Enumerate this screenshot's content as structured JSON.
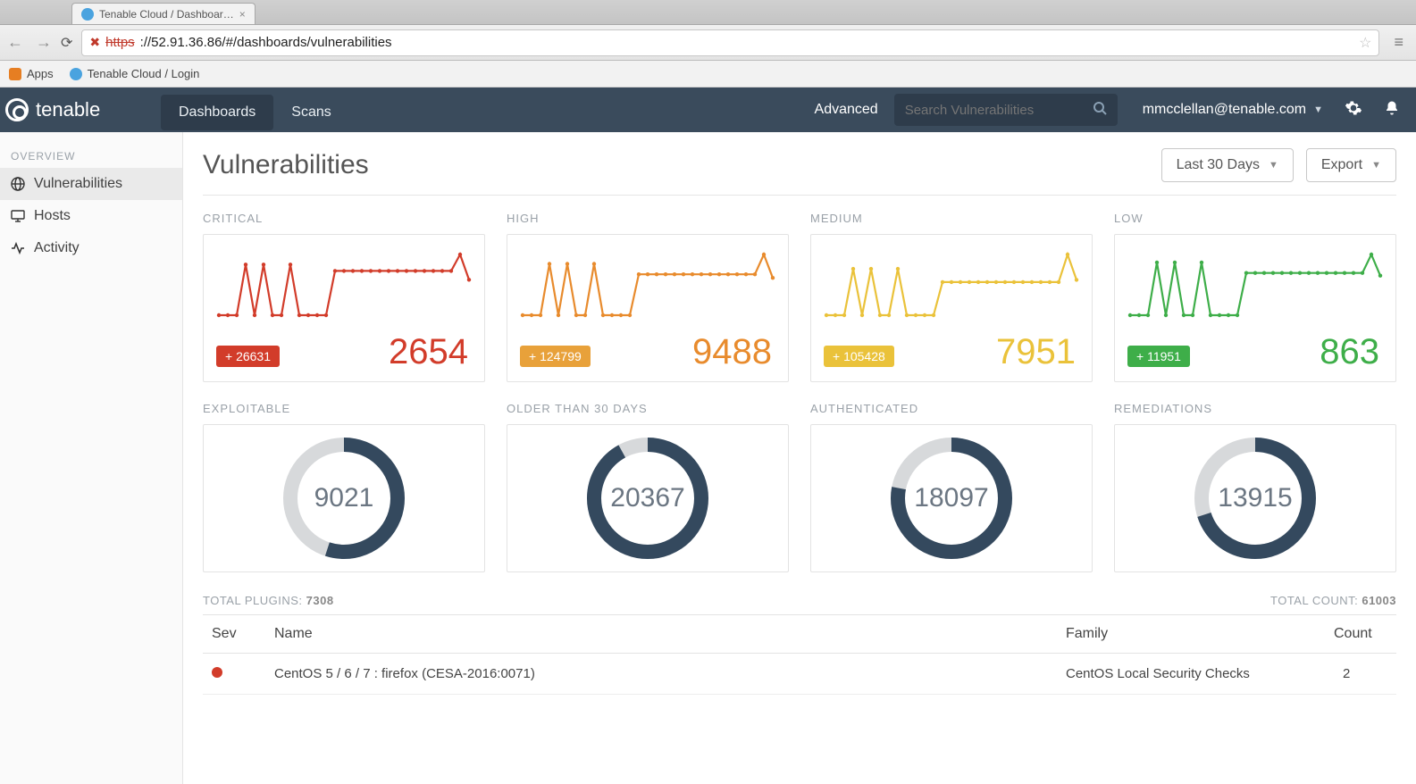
{
  "browser": {
    "tab_title": "Tenable Cloud / Dashboar…",
    "url_https": "https",
    "url_rest": "://52.91.36.86/#/dashboards/vulnerabilities",
    "bookmarks": [
      "Apps",
      "Tenable Cloud / Login"
    ]
  },
  "topnav": {
    "brand": "tenable",
    "tabs": [
      "Dashboards",
      "Scans"
    ],
    "active_tab_index": 0,
    "advanced": "Advanced",
    "search_placeholder": "Search Vulnerabilities",
    "user": "mmcclellan@tenable.com"
  },
  "sidebar": {
    "section": "OVERVIEW",
    "items": [
      {
        "label": "Vulnerabilities",
        "icon": "globe",
        "active": true
      },
      {
        "label": "Hosts",
        "icon": "monitor",
        "active": false
      },
      {
        "label": "Activity",
        "icon": "activity",
        "active": false
      }
    ]
  },
  "page": {
    "title": "Vulnerabilities",
    "date_range": "Last 30 Days",
    "export": "Export"
  },
  "severity_cards": [
    {
      "label": "CRITICAL",
      "color": "#d23c2a",
      "badge_bg": "#d23c2a",
      "badge": "+ 26631",
      "value": "2654",
      "spark": [
        30,
        30,
        30,
        70,
        30,
        70,
        30,
        30,
        70,
        30,
        30,
        30,
        30,
        65,
        65,
        65,
        65,
        65,
        65,
        65,
        65,
        65,
        65,
        65,
        65,
        65,
        65,
        78,
        58
      ]
    },
    {
      "label": "HIGH",
      "color": "#e88b2d",
      "badge_bg": "#e8a13a",
      "badge": "+ 124799",
      "value": "9488",
      "spark": [
        28,
        28,
        28,
        72,
        28,
        72,
        28,
        28,
        72,
        28,
        28,
        28,
        28,
        63,
        63,
        63,
        63,
        63,
        63,
        63,
        63,
        63,
        63,
        63,
        63,
        63,
        63,
        80,
        60
      ]
    },
    {
      "label": "MEDIUM",
      "color": "#eac23a",
      "badge_bg": "#eac23a",
      "badge": "+ 105428",
      "value": "7951",
      "spark": [
        30,
        30,
        30,
        72,
        30,
        72,
        30,
        30,
        72,
        30,
        30,
        30,
        30,
        60,
        60,
        60,
        60,
        60,
        60,
        60,
        60,
        60,
        60,
        60,
        60,
        60,
        60,
        85,
        62
      ]
    },
    {
      "label": "LOW",
      "color": "#3eae49",
      "badge_bg": "#3eae49",
      "badge": "+ 11951",
      "value": "863",
      "spark": [
        30,
        30,
        30,
        70,
        30,
        70,
        30,
        30,
        70,
        30,
        30,
        30,
        30,
        62,
        62,
        62,
        62,
        62,
        62,
        62,
        62,
        62,
        62,
        62,
        62,
        62,
        62,
        76,
        60
      ]
    }
  ],
  "donut_cards": [
    {
      "label": "EXPLOITABLE",
      "value": "9021",
      "pct": 55
    },
    {
      "label": "OLDER THAN 30 DAYS",
      "value": "20367",
      "pct": 92
    },
    {
      "label": "AUTHENTICATED",
      "value": "18097",
      "pct": 78
    },
    {
      "label": "REMEDIATIONS",
      "value": "13915",
      "pct": 70
    }
  ],
  "donut_style": {
    "fg": "#34495e",
    "bg": "#d7d9db",
    "stroke": 16
  },
  "plugins": {
    "total_label": "TOTAL PLUGINS:",
    "total_value": "7308",
    "count_label": "TOTAL COUNT:",
    "count_value": "61003",
    "columns": [
      "Sev",
      "Name",
      "Family",
      "Count"
    ],
    "rows": [
      {
        "sev_color": "#d23c2a",
        "name": "CentOS 5 / 6 / 7 : firefox (CESA-2016:0071)",
        "family": "CentOS Local Security Checks",
        "count": "2"
      }
    ]
  }
}
